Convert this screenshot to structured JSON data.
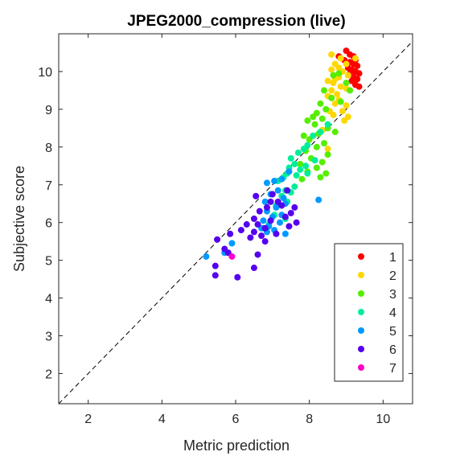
{
  "chart_data": {
    "type": "scatter",
    "title": "JPEG2000_compression (live)",
    "xlabel": "Metric prediction",
    "ylabel": "Subjective score",
    "xlim": [
      1.2,
      10.8
    ],
    "ylim": [
      1.2,
      11.0
    ],
    "xticks": [
      2,
      4,
      6,
      8,
      10
    ],
    "yticks": [
      2,
      3,
      4,
      5,
      6,
      7,
      8,
      9,
      10
    ],
    "reference_line": "dashed diagonal y = x",
    "legend_position": "bottom-right",
    "series": [
      {
        "name": "1",
        "color": "#ff0000",
        "points": [
          [
            9.0,
            10.55
          ],
          [
            9.1,
            10.45
          ],
          [
            9.2,
            10.4
          ],
          [
            8.8,
            10.4
          ],
          [
            9.25,
            10.3
          ],
          [
            8.95,
            10.3
          ],
          [
            9.1,
            10.25
          ],
          [
            9.2,
            10.2
          ],
          [
            9.3,
            10.15
          ],
          [
            9.05,
            10.1
          ],
          [
            9.15,
            10.05
          ],
          [
            9.25,
            10.0
          ],
          [
            9.35,
            9.95
          ],
          [
            9.1,
            9.95
          ],
          [
            9.2,
            9.85
          ],
          [
            9.3,
            9.8
          ],
          [
            9.15,
            9.75
          ],
          [
            9.25,
            9.65
          ],
          [
            9.35,
            9.6
          ]
        ]
      },
      {
        "name": "2",
        "color": "#ffd700",
        "points": [
          [
            8.6,
            10.45
          ],
          [
            8.85,
            10.35
          ],
          [
            9.0,
            10.2
          ],
          [
            9.25,
            10.35
          ],
          [
            8.7,
            10.2
          ],
          [
            8.8,
            10.1
          ],
          [
            8.6,
            10.05
          ],
          [
            8.9,
            10.0
          ],
          [
            8.8,
            9.85
          ],
          [
            9.05,
            9.9
          ],
          [
            8.7,
            9.8
          ],
          [
            8.5,
            9.75
          ],
          [
            8.65,
            9.7
          ],
          [
            8.85,
            9.6
          ],
          [
            9.0,
            9.55
          ],
          [
            8.6,
            9.5
          ],
          [
            8.75,
            9.4
          ],
          [
            8.5,
            9.35
          ],
          [
            8.6,
            9.3
          ],
          [
            8.8,
            9.25
          ],
          [
            8.7,
            9.15
          ],
          [
            9.0,
            9.1
          ],
          [
            8.9,
            8.95
          ],
          [
            8.55,
            8.95
          ],
          [
            9.05,
            8.8
          ],
          [
            8.95,
            8.7
          ],
          [
            8.65,
            8.85
          ],
          [
            8.35,
            8.45
          ],
          [
            8.5,
            7.95
          ]
        ]
      },
      {
        "name": "3",
        "color": "#55ee00",
        "points": [
          [
            8.8,
            9.95
          ],
          [
            8.65,
            9.9
          ],
          [
            9.0,
            9.7
          ],
          [
            9.1,
            9.5
          ],
          [
            8.4,
            9.5
          ],
          [
            8.6,
            9.3
          ],
          [
            8.85,
            9.2
          ],
          [
            8.3,
            9.15
          ],
          [
            8.45,
            9.0
          ],
          [
            8.2,
            8.9
          ],
          [
            8.1,
            8.8
          ],
          [
            8.35,
            8.75
          ],
          [
            7.95,
            8.7
          ],
          [
            8.15,
            8.6
          ],
          [
            8.5,
            8.5
          ],
          [
            8.7,
            8.4
          ],
          [
            8.25,
            8.35
          ],
          [
            7.85,
            8.3
          ],
          [
            8.0,
            8.2
          ],
          [
            8.4,
            8.1
          ],
          [
            8.2,
            8.0
          ],
          [
            7.9,
            7.9
          ],
          [
            8.5,
            7.8
          ],
          [
            8.05,
            7.7
          ],
          [
            8.35,
            7.6
          ],
          [
            7.75,
            7.55
          ],
          [
            8.2,
            7.45
          ],
          [
            7.95,
            7.35
          ],
          [
            8.45,
            7.3
          ],
          [
            8.3,
            7.2
          ],
          [
            7.8,
            7.15
          ]
        ]
      },
      {
        "name": "4",
        "color": "#00ee99",
        "points": [
          [
            8.5,
            8.6
          ],
          [
            8.3,
            8.4
          ],
          [
            8.1,
            8.3
          ],
          [
            7.95,
            8.05
          ],
          [
            7.85,
            7.95
          ],
          [
            7.7,
            7.85
          ],
          [
            7.5,
            7.7
          ],
          [
            8.15,
            7.65
          ],
          [
            7.6,
            7.55
          ],
          [
            7.9,
            7.5
          ],
          [
            7.45,
            7.45
          ],
          [
            7.75,
            7.4
          ],
          [
            7.4,
            7.3
          ],
          [
            7.95,
            7.3
          ],
          [
            7.65,
            7.25
          ],
          [
            7.3,
            7.2
          ],
          [
            7.15,
            7.1
          ],
          [
            7.6,
            6.95
          ],
          [
            7.35,
            6.85
          ],
          [
            7.5,
            6.8
          ],
          [
            7.25,
            6.7
          ],
          [
            7.4,
            6.55
          ],
          [
            7.1,
            6.45
          ],
          [
            7.05,
            6.2
          ],
          [
            7.35,
            6.1
          ],
          [
            6.9,
            5.95
          ],
          [
            6.75,
            5.85
          ]
        ]
      },
      {
        "name": "5",
        "color": "#0099ff",
        "points": [
          [
            7.45,
            7.35
          ],
          [
            7.25,
            7.15
          ],
          [
            7.05,
            7.1
          ],
          [
            6.85,
            7.05
          ],
          [
            7.15,
            6.85
          ],
          [
            6.95,
            6.75
          ],
          [
            7.3,
            6.65
          ],
          [
            6.8,
            6.55
          ],
          [
            7.35,
            6.5
          ],
          [
            7.1,
            6.4
          ],
          [
            6.85,
            6.3
          ],
          [
            7.25,
            6.2
          ],
          [
            7.0,
            6.15
          ],
          [
            6.75,
            6.05
          ],
          [
            7.2,
            6.0
          ],
          [
            6.9,
            5.9
          ],
          [
            6.7,
            5.85
          ],
          [
            7.05,
            5.8
          ],
          [
            6.85,
            5.75
          ],
          [
            7.35,
            5.7
          ],
          [
            8.25,
            6.6
          ],
          [
            5.9,
            5.45
          ],
          [
            5.2,
            5.1
          ],
          [
            5.7,
            5.2
          ]
        ]
      },
      {
        "name": "6",
        "color": "#5500ee",
        "points": [
          [
            7.4,
            6.85
          ],
          [
            7.0,
            6.75
          ],
          [
            6.55,
            6.7
          ],
          [
            7.15,
            6.55
          ],
          [
            6.95,
            6.55
          ],
          [
            7.25,
            6.45
          ],
          [
            6.85,
            6.4
          ],
          [
            7.6,
            6.4
          ],
          [
            7.5,
            6.25
          ],
          [
            6.65,
            6.3
          ],
          [
            7.35,
            6.15
          ],
          [
            6.5,
            6.1
          ],
          [
            6.95,
            6.05
          ],
          [
            7.65,
            6.0
          ],
          [
            6.6,
            5.95
          ],
          [
            6.3,
            5.95
          ],
          [
            7.45,
            5.9
          ],
          [
            6.8,
            5.85
          ],
          [
            6.15,
            5.8
          ],
          [
            6.5,
            5.75
          ],
          [
            7.1,
            5.7
          ],
          [
            6.7,
            5.65
          ],
          [
            5.85,
            5.7
          ],
          [
            6.4,
            5.6
          ],
          [
            5.5,
            5.55
          ],
          [
            6.8,
            5.5
          ],
          [
            5.7,
            5.3
          ],
          [
            5.8,
            5.2
          ],
          [
            6.6,
            5.15
          ],
          [
            5.45,
            4.85
          ],
          [
            6.5,
            4.8
          ],
          [
            5.45,
            4.6
          ],
          [
            6.05,
            4.55
          ]
        ]
      },
      {
        "name": "7",
        "color": "#ff00cc",
        "points": [
          [
            5.9,
            5.1
          ]
        ]
      }
    ]
  }
}
